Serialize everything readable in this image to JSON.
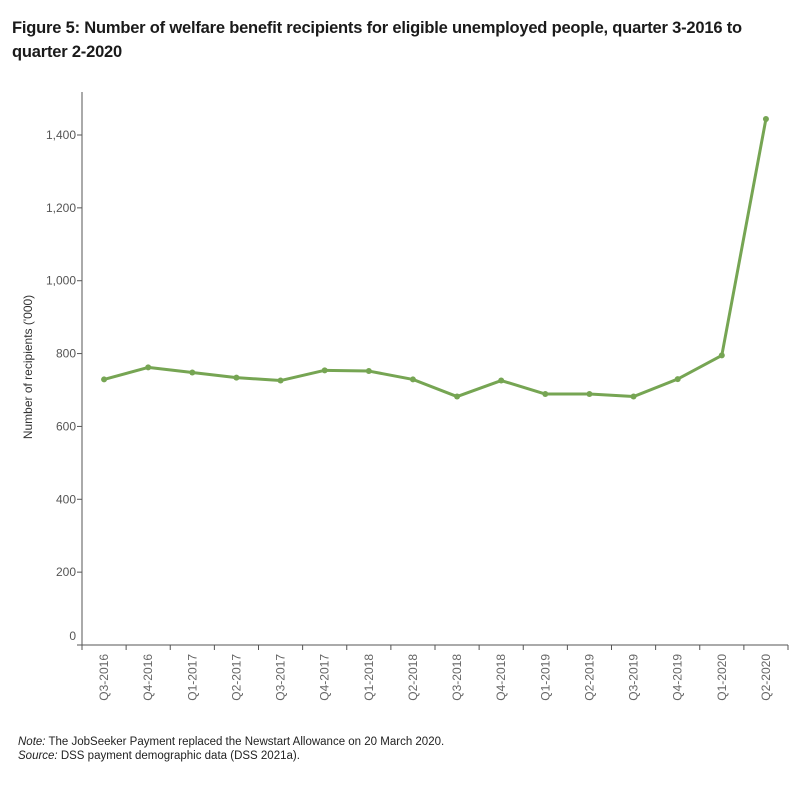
{
  "chart_data": {
    "type": "line",
    "title": "Figure 5: Number of welfare benefit recipients for eligible unemployed people, quarter 3-2016 to quarter 2-2020",
    "xlabel": "",
    "ylabel": "Number of recipients ('000)",
    "ylim": [
      0,
      1500
    ],
    "yticks": [
      0,
      200,
      400,
      600,
      800,
      1000,
      1200,
      1400
    ],
    "ytick_labels": [
      "0",
      "200",
      "400",
      "600",
      "800",
      "1,000",
      "1,200",
      "1,400"
    ],
    "grid": false,
    "categories": [
      "Q3-2016",
      "Q4-2016",
      "Q1-2017",
      "Q2-2017",
      "Q3-2017",
      "Q4-2017",
      "Q1-2018",
      "Q2-2018",
      "Q3-2018",
      "Q4-2018",
      "Q1-2019",
      "Q2-2019",
      "Q3-2019",
      "Q4-2019",
      "Q1-2020",
      "Q2-2020"
    ],
    "series": [
      {
        "name": "Recipients",
        "color": "#76a553",
        "values": [
          729,
          762,
          748,
          734,
          726,
          754,
          752,
          729,
          682,
          726,
          689,
          689,
          682,
          730,
          795,
          1444
        ]
      }
    ]
  },
  "notes": {
    "note_label": "Note:",
    "note_text": " The JobSeeker Payment replaced the Newstart Allowance on 20 March 2020.",
    "source_label": "Source:",
    "source_text": " DSS payment demographic data (DSS 2021a)."
  }
}
